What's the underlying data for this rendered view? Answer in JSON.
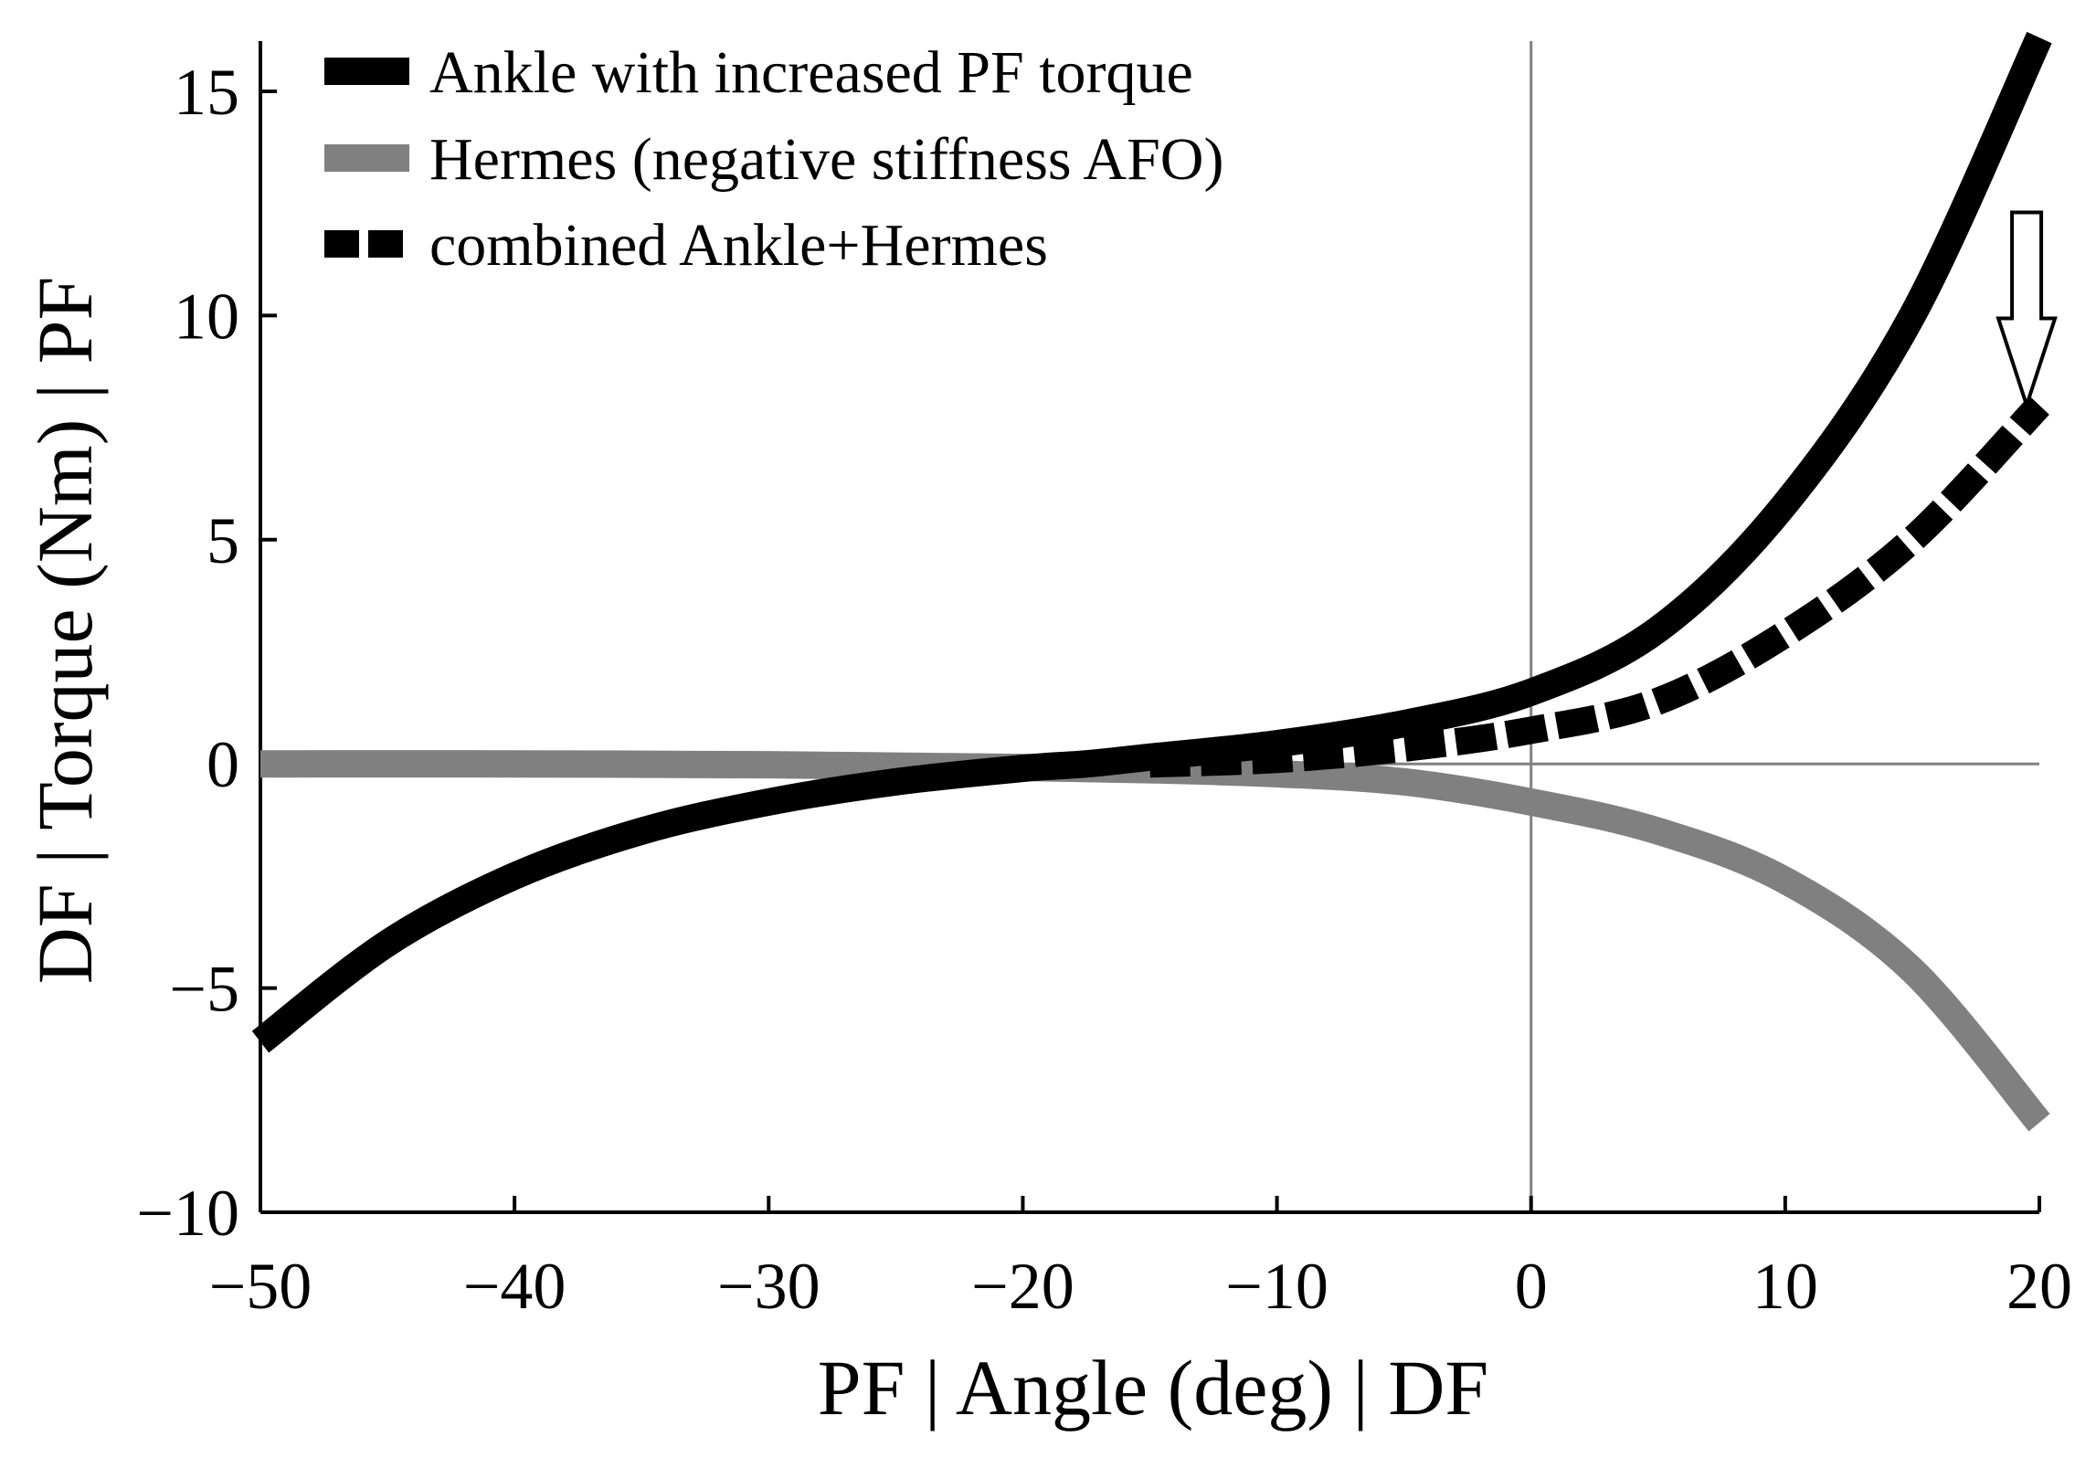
{
  "chart_data": {
    "type": "line",
    "title": "",
    "xlabel": "PF  |  Angle (deg)  |  DF",
    "ylabel": "DF  |  Torque (Nm)  |  PF",
    "xlim": [
      -50,
      20
    ],
    "ylim": [
      -10,
      16
    ],
    "x_ticks": [
      -50,
      -40,
      -30,
      -20,
      -10,
      0,
      10,
      20
    ],
    "x_tick_labels": [
      "−50",
      "−40",
      "−30",
      "−20",
      "−10",
      "0",
      "10",
      "20"
    ],
    "y_ticks": [
      -10,
      -5,
      0,
      5,
      10,
      15
    ],
    "y_tick_labels": [
      "−10",
      "−5",
      "0",
      "5",
      "10",
      "15"
    ],
    "grid": false,
    "reference_lines": {
      "x": 0,
      "y": 0
    },
    "legend": {
      "position": "top-left"
    },
    "series": [
      {
        "name": "Ankle with increased PF torque",
        "color": "#000000",
        "style": "solid",
        "x": [
          -50,
          -45,
          -40,
          -35,
          -30,
          -25,
          -20,
          -17.5,
          -15,
          -10,
          -5,
          0,
          5,
          10,
          15,
          20
        ],
        "y": [
          -6.2,
          -4.0,
          -2.5,
          -1.5,
          -0.85,
          -0.4,
          -0.1,
          0.0,
          0.15,
          0.45,
          0.9,
          1.6,
          3.0,
          5.8,
          10.0,
          16.2
        ]
      },
      {
        "name": "Hermes (negative stiffness AFO)",
        "color": "#808080",
        "style": "solid",
        "x": [
          -50,
          -40,
          -30,
          -25,
          -20,
          -15,
          -10,
          -5,
          0,
          5,
          10,
          15,
          20
        ],
        "y": [
          0.0,
          0.0,
          -0.02,
          -0.05,
          -0.08,
          -0.13,
          -0.22,
          -0.4,
          -0.85,
          -1.5,
          -2.6,
          -4.6,
          -8.0
        ]
      },
      {
        "name": "combined Ankle+Hermes",
        "color": "#000000",
        "style": "dashed",
        "x": [
          -15,
          -10,
          -5,
          0,
          5,
          10,
          15,
          20
        ],
        "y": [
          0.0,
          0.1,
          0.35,
          0.75,
          1.4,
          2.9,
          5.0,
          8.0
        ]
      }
    ],
    "annotations": [
      {
        "type": "arrow",
        "direction": "down",
        "x": 19.5,
        "from_y": 12.3,
        "to_y": 8.0,
        "style": "hollow"
      }
    ]
  }
}
